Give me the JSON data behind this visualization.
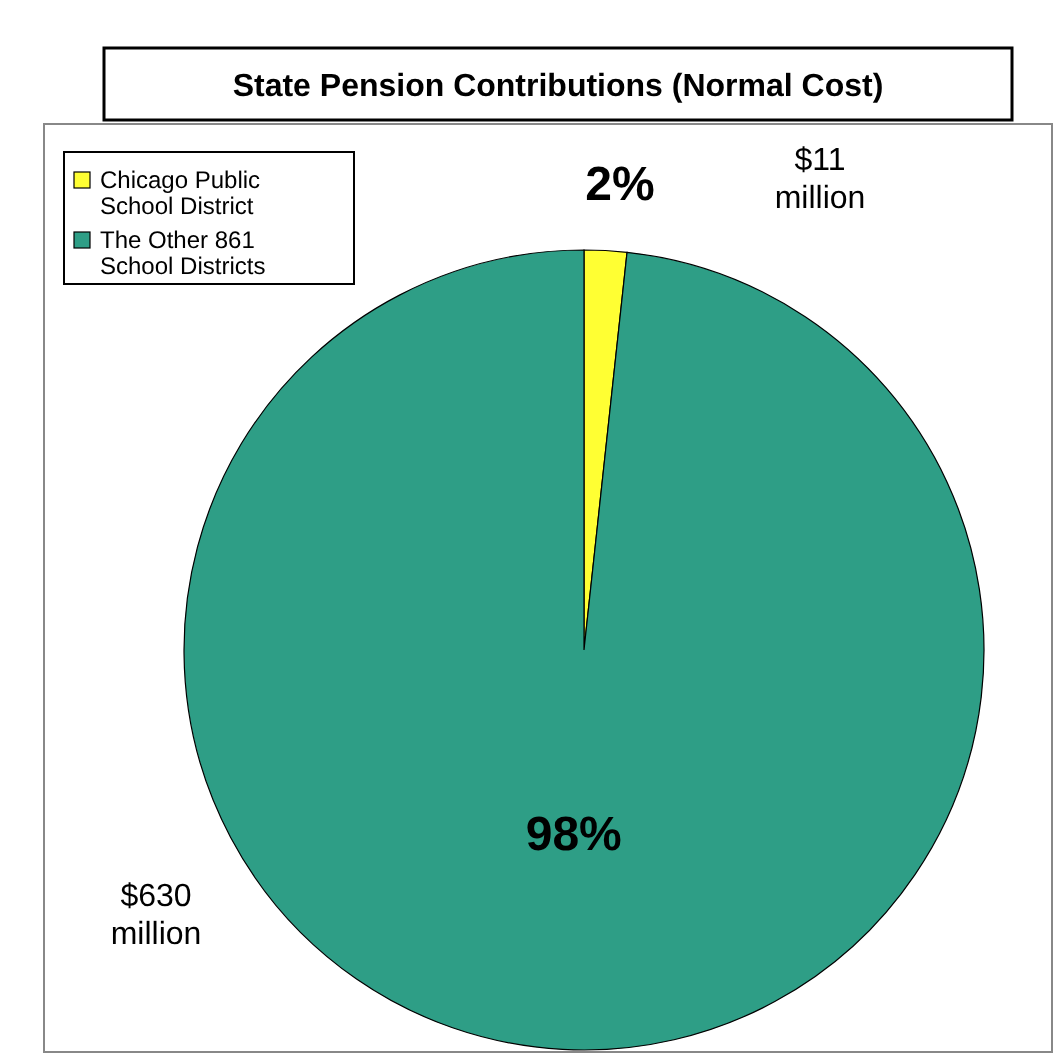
{
  "chart_data": {
    "type": "pie",
    "title": "State Pension Contributions (Normal Cost)",
    "categories": [
      "Chicago Public School District",
      "The Other 861 School Districts"
    ],
    "values": [
      11,
      630
    ],
    "colors": [
      "#ffff33",
      "#2e9e86"
    ],
    "value_labels": [
      "$11 million",
      "$630 million"
    ],
    "annotations": [
      "2%",
      "98%"
    ],
    "legend": "top left"
  }
}
